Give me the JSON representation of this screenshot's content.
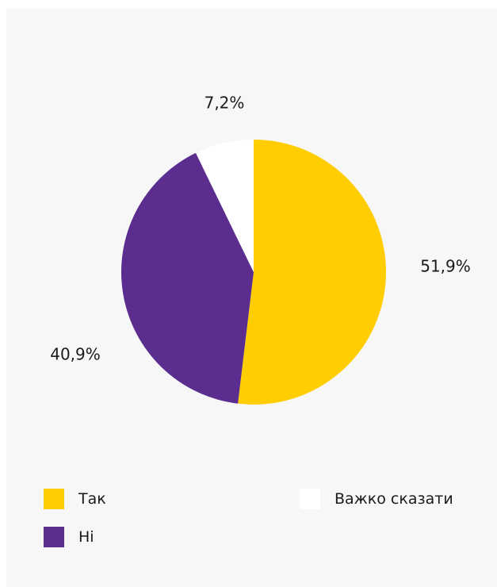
{
  "chart_data": {
    "type": "pie",
    "title": "",
    "slices": [
      {
        "label": "Так",
        "value": 51.9,
        "value_label": "51,9%",
        "color": "#ffcd00"
      },
      {
        "label": "Ні",
        "value": 40.9,
        "value_label": "40,9%",
        "color": "#5b2d8e"
      },
      {
        "label": "Важко сказати",
        "value": 7.2,
        "value_label": "7,2%",
        "color": "#ffffff"
      }
    ],
    "start_angle": "12 o'clock",
    "direction": "clockwise",
    "legend_position": "bottom"
  }
}
